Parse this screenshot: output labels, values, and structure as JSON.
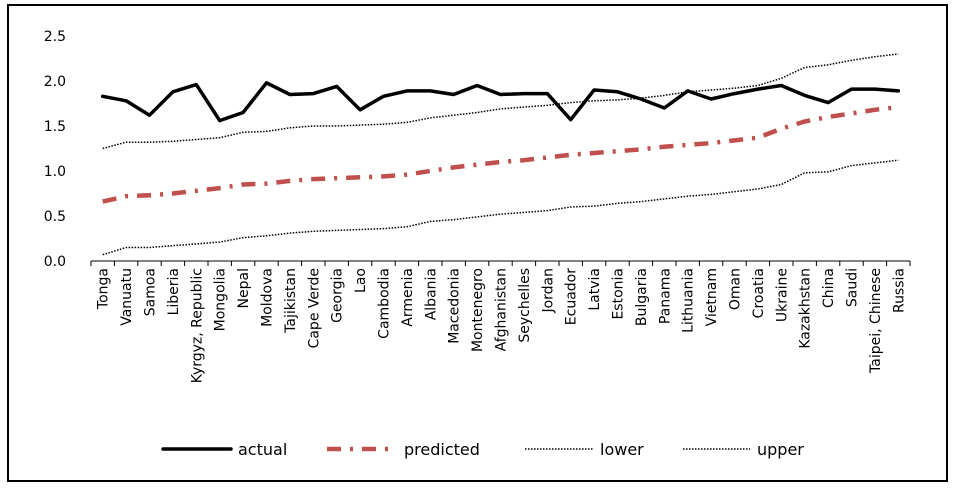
{
  "chart_data": {
    "type": "line",
    "title": "",
    "xlabel": "",
    "ylabel": "",
    "ylim": [
      0,
      2.5
    ],
    "yticks": [
      "0.0",
      "0.5",
      "1.0",
      "1.5",
      "2.0",
      "2.5"
    ],
    "grid": false,
    "legend_position": "bottom",
    "categories": [
      "Tonga",
      "Vanuatu",
      "Samoa",
      "Liberia",
      "Kyrgyz, Republic",
      "Mongolia",
      "Nepal",
      "Moldova",
      "Tajikistan",
      "Cape Verde",
      "Georgia",
      "Lao",
      "Cambodia",
      "Armenia",
      "Albania",
      "Macedonia",
      "Montenegro",
      "Afghanistan",
      "Seychelles",
      "Jordan",
      "Ecuador",
      "Latvia",
      "Estonia",
      "Bulgaria",
      "Panama",
      "Lithuania",
      "Vietnam",
      "Oman",
      "Croatia",
      "Ukraine",
      "Kazakhstan",
      "China",
      "Saudi",
      "Taipei, Chinese",
      "Russia"
    ],
    "series": [
      {
        "name": "actual",
        "color": "#000000",
        "style": "solid",
        "values": [
          1.83,
          1.78,
          1.62,
          1.88,
          1.96,
          1.56,
          1.65,
          1.98,
          1.85,
          1.86,
          1.94,
          1.68,
          1.83,
          1.89,
          1.89,
          1.85,
          1.95,
          1.85,
          1.86,
          1.86,
          1.57,
          1.9,
          1.88,
          1.8,
          1.7,
          1.89,
          1.8,
          1.86,
          1.91,
          1.95,
          1.84,
          1.76,
          1.91,
          1.91,
          1.89
        ]
      },
      {
        "name": "predicted",
        "color": "#c0504d",
        "style": "dash-dot",
        "values": [
          0.66,
          0.72,
          0.73,
          0.75,
          0.78,
          0.81,
          0.85,
          0.86,
          0.89,
          0.91,
          0.92,
          0.93,
          0.94,
          0.96,
          1.0,
          1.04,
          1.07,
          1.1,
          1.12,
          1.15,
          1.18,
          1.2,
          1.22,
          1.24,
          1.27,
          1.29,
          1.31,
          1.34,
          1.37,
          1.47,
          1.55,
          1.6,
          1.64,
          1.68,
          1.71
        ]
      },
      {
        "name": "lower",
        "color": "#000000",
        "style": "dotted",
        "values": [
          0.07,
          0.15,
          0.15,
          0.17,
          0.19,
          0.21,
          0.26,
          0.28,
          0.31,
          0.33,
          0.34,
          0.35,
          0.36,
          0.38,
          0.44,
          0.46,
          0.49,
          0.52,
          0.54,
          0.56,
          0.6,
          0.61,
          0.64,
          0.66,
          0.69,
          0.72,
          0.74,
          0.77,
          0.8,
          0.85,
          0.98,
          0.99,
          1.06,
          1.09,
          1.12
        ]
      },
      {
        "name": "upper",
        "color": "#000000",
        "style": "dotted",
        "values": [
          1.25,
          1.32,
          1.32,
          1.33,
          1.35,
          1.37,
          1.43,
          1.44,
          1.48,
          1.5,
          1.5,
          1.51,
          1.52,
          1.54,
          1.59,
          1.62,
          1.65,
          1.69,
          1.71,
          1.73,
          1.76,
          1.78,
          1.79,
          1.81,
          1.84,
          1.88,
          1.9,
          1.92,
          1.95,
          2.03,
          2.15,
          2.18,
          2.23,
          2.27,
          2.3
        ]
      }
    ]
  }
}
